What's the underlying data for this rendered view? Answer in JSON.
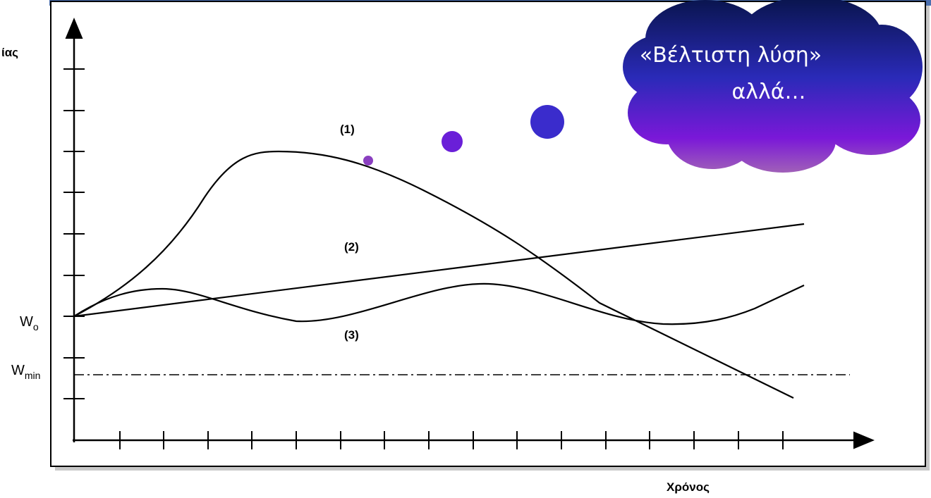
{
  "axis_label_y": "ίας",
  "axis_label_x": "Χρόνος",
  "levels": [
    {
      "symbol": "W",
      "subscript": "o"
    },
    {
      "symbol": "W",
      "subscript": "min"
    }
  ],
  "curve_labels": [
    "(1)",
    "(2)",
    "(3)"
  ],
  "callout": {
    "lines": [
      "«Βέλτιστη λύση»",
      "αλλά…"
    ]
  }
}
